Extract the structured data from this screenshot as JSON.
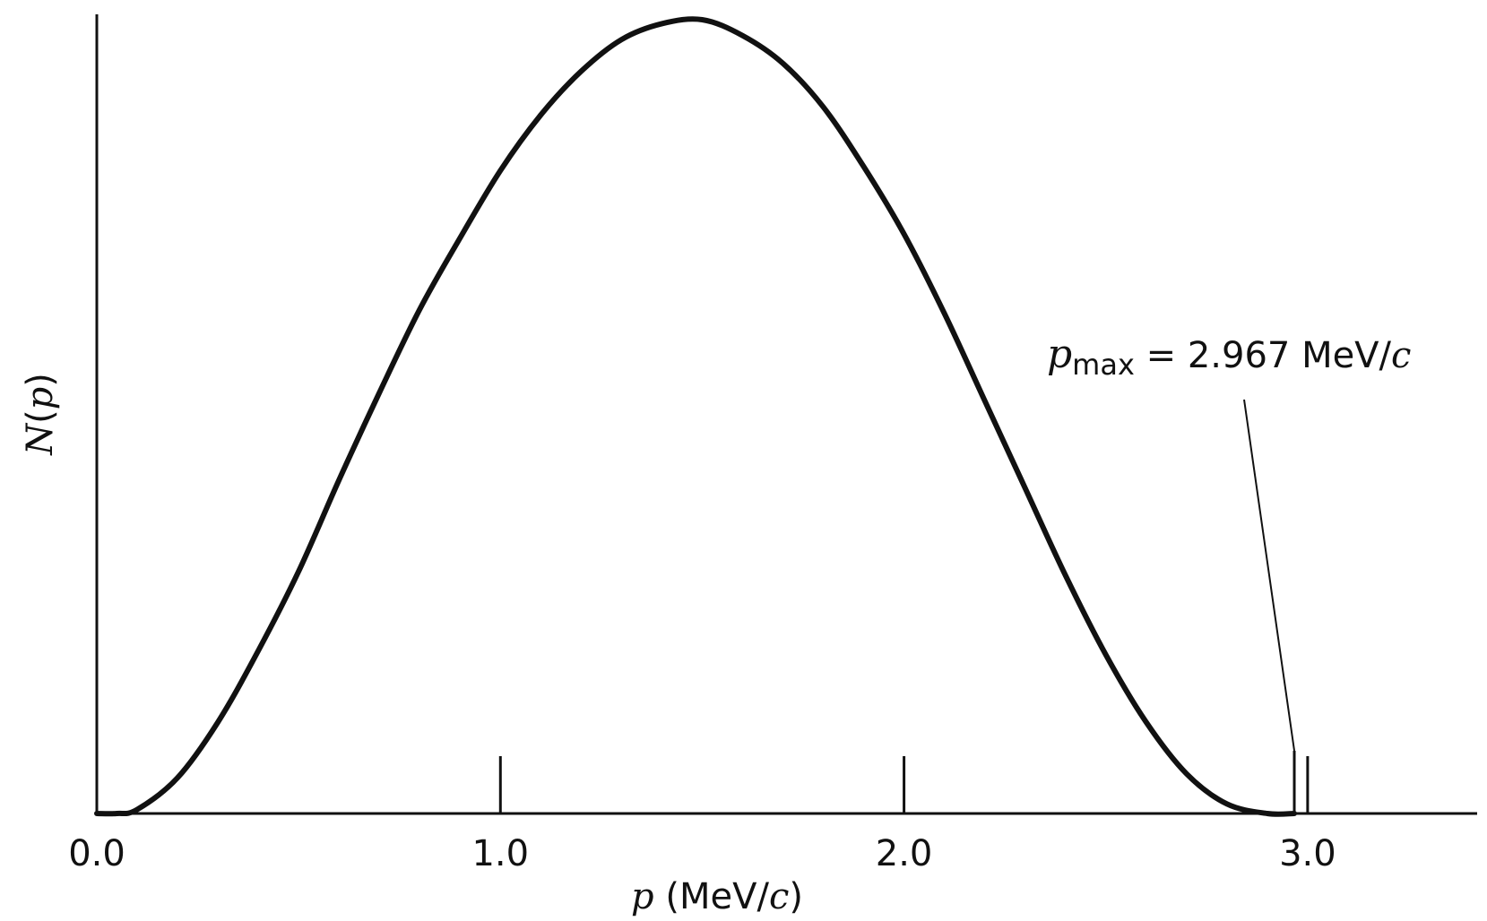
{
  "chart_data": {
    "type": "line",
    "xlabel": {
      "var": "p",
      "unit_open": " (MeV/",
      "unit_var": "c",
      "unit_close": ")"
    },
    "ylabel": {
      "func": "N",
      "open": "(",
      "var": "p",
      "close": ")"
    },
    "xlim": [
      0.0,
      3.42
    ],
    "ylim": [
      0.0,
      1.0
    ],
    "x_ticks": [
      {
        "value": 0.0,
        "label": "0.0"
      },
      {
        "value": 1.0,
        "label": "1.0"
      },
      {
        "value": 2.0,
        "label": "2.0"
      },
      {
        "value": 3.0,
        "label": "3.0"
      }
    ],
    "series": [
      {
        "x": [
          0.0,
          0.05,
          0.1,
          0.2,
          0.3,
          0.4,
          0.5,
          0.6,
          0.7,
          0.8,
          0.9,
          1.0,
          1.1,
          1.2,
          1.3,
          1.4,
          1.5,
          1.6,
          1.7,
          1.8,
          1.9,
          2.0,
          2.1,
          2.2,
          2.3,
          2.4,
          2.5,
          2.6,
          2.7,
          2.8,
          2.9,
          2.967
        ],
        "y": [
          0.0,
          0.0,
          0.005,
          0.045,
          0.115,
          0.205,
          0.305,
          0.42,
          0.53,
          0.635,
          0.725,
          0.81,
          0.88,
          0.935,
          0.975,
          0.995,
          1.0,
          0.98,
          0.945,
          0.89,
          0.815,
          0.73,
          0.63,
          0.52,
          0.41,
          0.3,
          0.2,
          0.115,
          0.05,
          0.012,
          0.0,
          0.0
        ]
      }
    ],
    "annotations": [
      {
        "var": "p",
        "sub": "max",
        "text": " = 2.967 MeV/",
        "unit_var": "c",
        "points_to_x": 2.967
      }
    ],
    "grid": false,
    "legend": "none"
  }
}
